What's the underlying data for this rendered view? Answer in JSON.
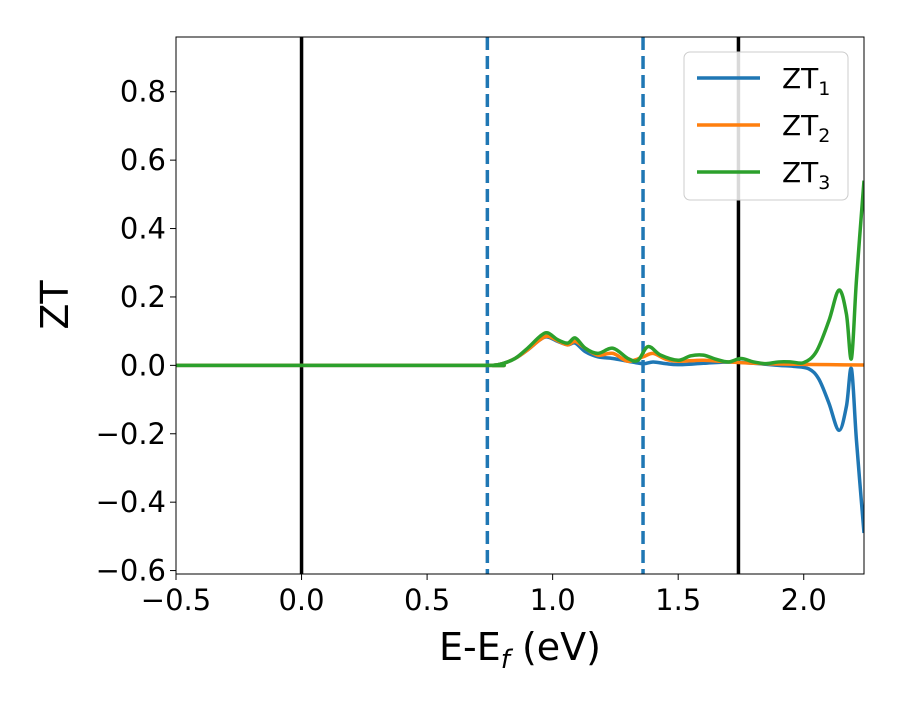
{
  "chart_data": {
    "type": "line",
    "title": "",
    "xlabel": "E-E",
    "xlabel_sub": "f",
    "xlabel_unit": " (eV)",
    "ylabel": "ZT",
    "xlim": [
      -0.5,
      2.24
    ],
    "ylim": [
      -0.61,
      0.96
    ],
    "xticks": [
      -0.5,
      0.0,
      0.5,
      1.0,
      1.5,
      2.0
    ],
    "xtick_labels": [
      "−0.5",
      "0.0",
      "0.5",
      "1.0",
      "1.5",
      "2.0"
    ],
    "yticks": [
      -0.6,
      -0.4,
      -0.2,
      0.0,
      0.2,
      0.4,
      0.6,
      0.8
    ],
    "ytick_labels": [
      "−0.6",
      "−0.4",
      "−0.2",
      "0.0",
      "0.2",
      "0.4",
      "0.6",
      "0.8"
    ],
    "grid": false,
    "legend_position": "top-right",
    "vlines": [
      {
        "x": 0.0,
        "style": "solid",
        "color": "#000000"
      },
      {
        "x": 1.74,
        "style": "solid",
        "color": "#000000"
      },
      {
        "x": 0.74,
        "style": "dashed",
        "color": "#1f77b4"
      },
      {
        "x": 1.36,
        "style": "dashed",
        "color": "#1f77b4"
      }
    ],
    "series": [
      {
        "base": "ZT",
        "sub": "1",
        "color": "#1f77b4",
        "x": [
          -0.5,
          0.7,
          0.76,
          0.8,
          0.85,
          0.9,
          0.95,
          0.98,
          1.02,
          1.06,
          1.09,
          1.13,
          1.18,
          1.24,
          1.3,
          1.36,
          1.4,
          1.45,
          1.5,
          1.6,
          1.7,
          1.8,
          1.9,
          1.96,
          2.02,
          2.06,
          2.1,
          2.14,
          2.17,
          2.19,
          2.21,
          2.24
        ],
        "y": [
          0.0,
          0.0,
          0.0,
          0.005,
          0.02,
          0.045,
          0.075,
          0.083,
          0.07,
          0.06,
          0.065,
          0.04,
          0.025,
          0.02,
          0.012,
          0.005,
          0.01,
          0.005,
          0.002,
          0.006,
          0.01,
          0.006,
          0.0,
          -0.003,
          -0.01,
          -0.04,
          -0.11,
          -0.19,
          -0.12,
          -0.01,
          -0.22,
          -0.49
        ]
      },
      {
        "base": "ZT",
        "sub": "2",
        "color": "#ff7f0e",
        "x": [
          -0.5,
          0.7,
          0.76,
          0.8,
          0.85,
          0.9,
          0.95,
          0.98,
          1.02,
          1.06,
          1.09,
          1.13,
          1.18,
          1.24,
          1.3,
          1.36,
          1.4,
          1.45,
          1.5,
          1.6,
          1.7,
          1.8,
          1.9,
          2.0,
          2.1,
          2.24
        ],
        "y": [
          0.0,
          0.0,
          0.0,
          0.005,
          0.02,
          0.045,
          0.075,
          0.085,
          0.072,
          0.06,
          0.07,
          0.05,
          0.03,
          0.035,
          0.012,
          0.025,
          0.035,
          0.018,
          0.012,
          0.015,
          0.01,
          0.006,
          0.004,
          0.003,
          0.002,
          0.001
        ]
      },
      {
        "base": "ZT",
        "sub": "3",
        "color": "#2ca02c",
        "x": [
          -0.5,
          0.7,
          0.76,
          0.8,
          0.85,
          0.9,
          0.95,
          0.98,
          1.02,
          1.06,
          1.09,
          1.13,
          1.18,
          1.24,
          1.3,
          1.34,
          1.38,
          1.43,
          1.5,
          1.55,
          1.6,
          1.65,
          1.7,
          1.75,
          1.8,
          1.85,
          1.9,
          1.95,
          2.0,
          2.05,
          2.1,
          2.14,
          2.17,
          2.19,
          2.21,
          2.24
        ],
        "y": [
          0.0,
          0.0,
          0.0,
          0.005,
          0.02,
          0.05,
          0.085,
          0.095,
          0.075,
          0.065,
          0.08,
          0.05,
          0.035,
          0.05,
          0.02,
          0.015,
          0.055,
          0.03,
          0.015,
          0.028,
          0.03,
          0.018,
          0.01,
          0.02,
          0.01,
          0.005,
          0.01,
          0.01,
          0.008,
          0.04,
          0.13,
          0.22,
          0.15,
          0.02,
          0.25,
          0.54
        ]
      }
    ]
  }
}
